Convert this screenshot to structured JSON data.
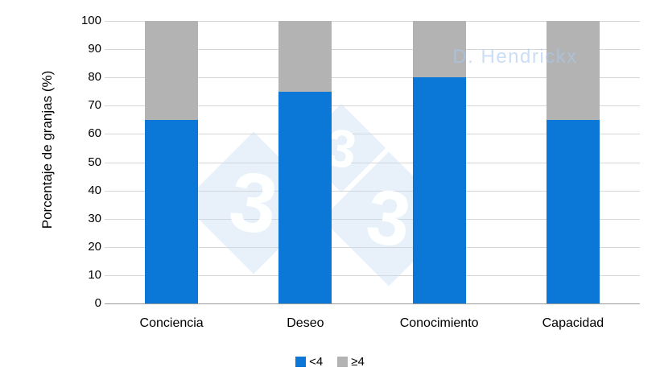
{
  "chart_data": {
    "type": "bar",
    "stacked": true,
    "categories": [
      "Conciencia",
      "Deseo",
      "Conocimiento",
      "Capacidad"
    ],
    "series": [
      {
        "name": "<4",
        "color": "#0b78d8",
        "values": [
          65,
          75,
          80,
          65
        ]
      },
      {
        "name": "≥4",
        "color": "#b3b3b3",
        "values": [
          35,
          25,
          20,
          35
        ]
      }
    ],
    "title": "",
    "xlabel": "",
    "ylabel": "Porcentaje de granjas (%)",
    "ylim": [
      0,
      100
    ],
    "yticks": [
      0,
      10,
      20,
      30,
      40,
      50,
      60,
      70,
      80,
      90,
      100
    ],
    "grid": true,
    "legend_position": "bottom"
  },
  "watermarks": {
    "author": "D. Hendrickx",
    "logo_threes": [
      "3",
      "3",
      "3"
    ]
  },
  "colors": {
    "bar_blue": "#0b78d8",
    "bar_gray": "#b3b3b3",
    "gridline": "#d6d6d6",
    "axis_baseline": "#9a9a9a",
    "watermark_blue": "rgba(168,200,238,0.6)",
    "logo_fill": "rgba(201,222,243,0.42)"
  }
}
